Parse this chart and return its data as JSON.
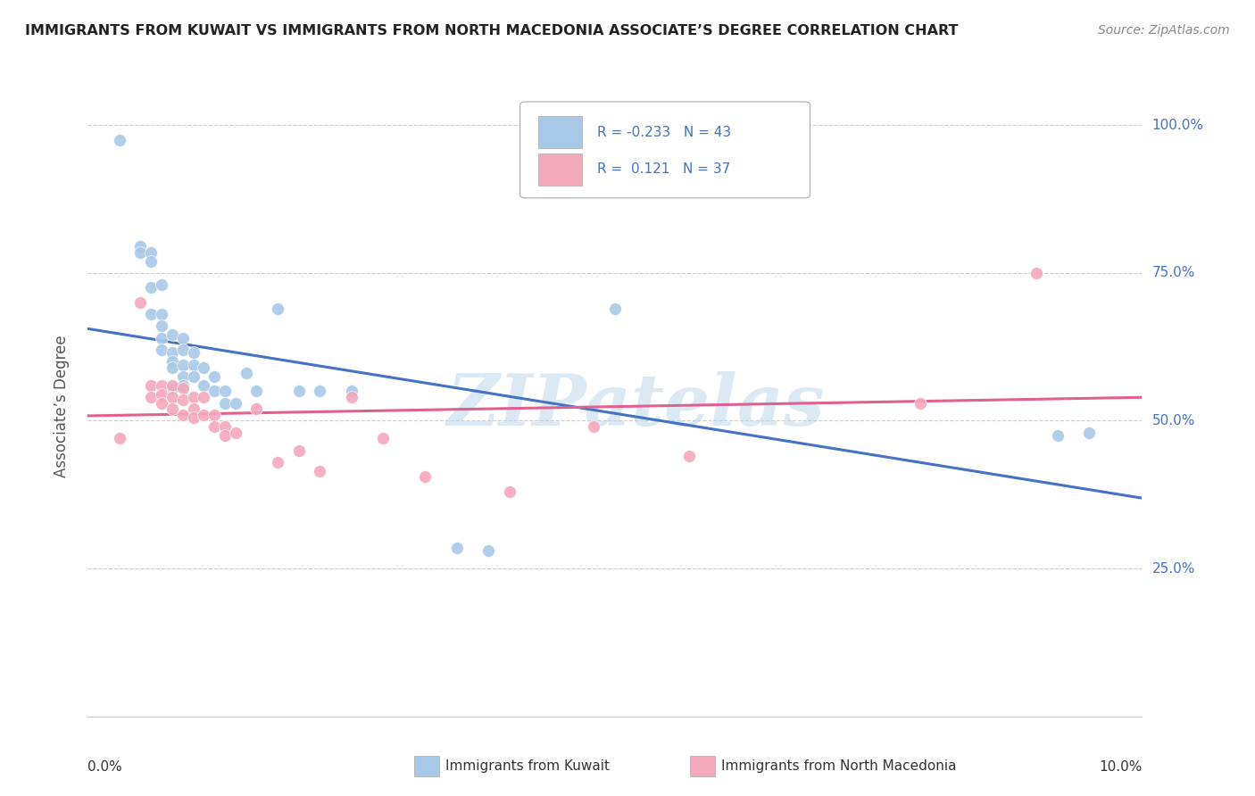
{
  "title": "IMMIGRANTS FROM KUWAIT VS IMMIGRANTS FROM NORTH MACEDONIA ASSOCIATE’S DEGREE CORRELATION CHART",
  "source": "Source: ZipAtlas.com",
  "ylabel": "Associate’s Degree",
  "color_blue": "#a8c8e8",
  "color_pink": "#f4a8bb",
  "line_color_blue": "#4472c4",
  "line_color_pink": "#e06090",
  "watermark_color": "#cce0f0",
  "xlim": [
    0.0,
    0.1
  ],
  "ylim": [
    0.0,
    1.05
  ],
  "yticks": [
    0.0,
    0.25,
    0.5,
    0.75,
    1.0
  ],
  "ytick_labels": [
    "",
    "25.0%",
    "50.0%",
    "75.0%",
    "100.0%"
  ],
  "kuwait_x": [
    0.003,
    0.005,
    0.005,
    0.006,
    0.006,
    0.006,
    0.006,
    0.007,
    0.007,
    0.007,
    0.007,
    0.007,
    0.008,
    0.008,
    0.008,
    0.008,
    0.008,
    0.009,
    0.009,
    0.009,
    0.009,
    0.009,
    0.01,
    0.01,
    0.01,
    0.011,
    0.011,
    0.012,
    0.012,
    0.013,
    0.013,
    0.014,
    0.015,
    0.016,
    0.018,
    0.02,
    0.022,
    0.025,
    0.035,
    0.038,
    0.05,
    0.092,
    0.095
  ],
  "kuwait_y": [
    0.975,
    0.795,
    0.785,
    0.785,
    0.77,
    0.725,
    0.68,
    0.73,
    0.68,
    0.66,
    0.64,
    0.62,
    0.645,
    0.615,
    0.6,
    0.59,
    0.555,
    0.64,
    0.62,
    0.595,
    0.575,
    0.56,
    0.615,
    0.595,
    0.575,
    0.59,
    0.56,
    0.575,
    0.55,
    0.55,
    0.53,
    0.53,
    0.58,
    0.55,
    0.69,
    0.55,
    0.55,
    0.55,
    0.285,
    0.28,
    0.69,
    0.475,
    0.48
  ],
  "macedonia_x": [
    0.003,
    0.005,
    0.006,
    0.006,
    0.007,
    0.007,
    0.007,
    0.008,
    0.008,
    0.008,
    0.009,
    0.009,
    0.009,
    0.01,
    0.01,
    0.01,
    0.011,
    0.011,
    0.012,
    0.012,
    0.013,
    0.013,
    0.014,
    0.016,
    0.018,
    0.02,
    0.022,
    0.025,
    0.028,
    0.032,
    0.04,
    0.048,
    0.057,
    0.079,
    0.09
  ],
  "macedonia_y": [
    0.47,
    0.7,
    0.56,
    0.54,
    0.56,
    0.545,
    0.53,
    0.56,
    0.54,
    0.52,
    0.555,
    0.535,
    0.51,
    0.54,
    0.52,
    0.505,
    0.54,
    0.51,
    0.51,
    0.49,
    0.49,
    0.475,
    0.48,
    0.52,
    0.43,
    0.45,
    0.415,
    0.54,
    0.47,
    0.405,
    0.38,
    0.49,
    0.44,
    0.53,
    0.75
  ]
}
